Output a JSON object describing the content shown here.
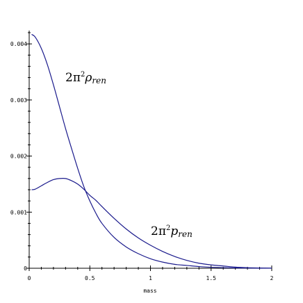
{
  "chart_data": {
    "type": "line",
    "xlabel": "mass",
    "ylabel": "",
    "xlim": [
      0,
      2
    ],
    "ylim": [
      0,
      0.0042
    ],
    "xticks": [
      0,
      0.5,
      1,
      1.5,
      2
    ],
    "xtick_labels": [
      "0",
      "0.5",
      "1",
      "1.5",
      "2"
    ],
    "yticks": [
      0,
      0.001,
      0.002,
      0.003,
      0.004
    ],
    "ytick_labels": [
      "0",
      "0.001",
      "0.002",
      "0.003",
      "0.004"
    ],
    "grid": false,
    "line_color": "#1a1a8c",
    "annotations": [
      {
        "base": "2π",
        "sup": "2",
        "symbol": "ρ",
        "sub": "ren",
        "x": 0.3,
        "y": 0.00338
      },
      {
        "base": "2π",
        "sup": "2",
        "symbol": "p",
        "sub": "ren",
        "x": 1.0,
        "y": 0.00061
      }
    ],
    "series": [
      {
        "x": [
          0.02,
          0.05,
          0.1,
          0.15,
          0.2,
          0.25,
          0.3,
          0.35,
          0.4,
          0.45,
          0.5,
          0.55,
          0.6,
          0.7,
          0.8,
          0.9,
          1.0,
          1.1,
          1.2,
          1.3,
          1.4,
          1.5,
          1.6,
          1.7,
          1.8,
          1.9,
          2.0
        ],
        "values": [
          0.00417,
          0.00412,
          0.00392,
          0.00363,
          0.00327,
          0.00288,
          0.00249,
          0.00213,
          0.00178,
          0.00146,
          0.0012,
          0.00098,
          0.0008,
          0.00055,
          0.00038,
          0.00026,
          0.00017,
          0.00011,
          7e-05,
          5e-05,
          3e-05,
          1.8e-05,
          1e-05,
          6e-06,
          4e-06,
          2e-06,
          1e-06
        ]
      },
      {
        "x": [
          0.02,
          0.05,
          0.1,
          0.15,
          0.2,
          0.25,
          0.3,
          0.35,
          0.4,
          0.45,
          0.5,
          0.55,
          0.6,
          0.7,
          0.8,
          0.9,
          1.0,
          1.1,
          1.2,
          1.3,
          1.4,
          1.5,
          1.6,
          1.7,
          1.8,
          1.9,
          2.0
        ],
        "values": [
          0.0014,
          0.00141,
          0.00147,
          0.00153,
          0.00158,
          0.0016,
          0.0016,
          0.00156,
          0.0015,
          0.00141,
          0.0013,
          0.00121,
          0.0011,
          0.00089,
          0.0007,
          0.00054,
          0.00041,
          0.0003,
          0.00021,
          0.00014,
          9e-05,
          6e-05,
          4e-05,
          2e-05,
          1e-05,
          5e-06,
          2e-06
        ]
      }
    ]
  }
}
